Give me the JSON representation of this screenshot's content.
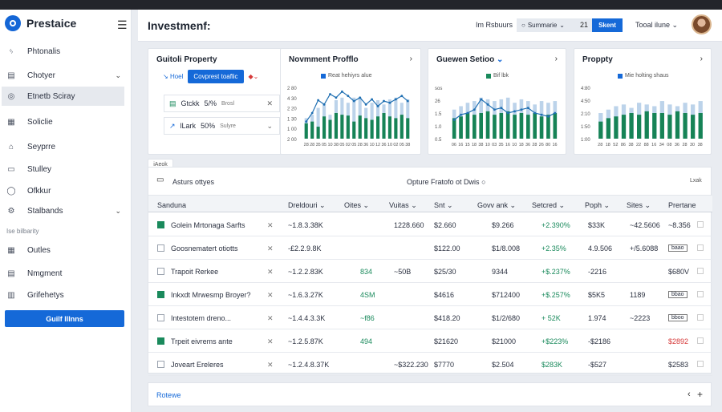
{
  "app": {
    "name": "Prestaice"
  },
  "sidebar": {
    "items": [
      {
        "label": "Phtonalis",
        "icon": "graph-icon"
      },
      {
        "label": "Chotyer",
        "icon": "table-icon"
      },
      {
        "label": "Etnetb Sciray",
        "icon": "layers-icon"
      },
      {
        "label": "Soliclie",
        "icon": "doc-icon"
      },
      {
        "label": "Seyprre",
        "icon": "pulse-icon"
      },
      {
        "label": "Stulley",
        "icon": "card-icon"
      },
      {
        "label": "Ofkkur",
        "icon": "wallet-icon"
      },
      {
        "label": "Stalbands",
        "icon": "gear-icon"
      },
      {
        "label": "Outles",
        "icon": "grid-icon"
      },
      {
        "label": "Nmgment",
        "icon": "list-icon"
      },
      {
        "label": "Grifehetys",
        "icon": "clipboard-icon"
      }
    ],
    "section": "Ise bilbarity",
    "button": "Guilf lllnns"
  },
  "topbar": {
    "title": "Investmenf:",
    "link": "Im Rsbuurs",
    "select": "Summarie",
    "number": "21",
    "button": "Skent",
    "dropdown": "Tooal ilune"
  },
  "cards": {
    "portfolio": {
      "title": "Guitoli Property",
      "chip": "Hoel",
      "button": "Covprest toaflic",
      "rows": [
        {
          "label": "Gtckk",
          "pct": "5/%",
          "val": "Brosl"
        },
        {
          "label": "lLark",
          "pct": "50%",
          "val": "Sulyre"
        }
      ]
    },
    "chart1": {
      "title": "Novmment Profflo",
      "legend": "Reat hehiyrs alue"
    },
    "chart2": {
      "title": "Guewen Setioo",
      "legend": "Bif lbk"
    },
    "chart3": {
      "title": "Proppty",
      "legend": "Mie holting shaus"
    }
  },
  "chart_data": [
    {
      "type": "bar",
      "title": "Novmment Profflo",
      "ylabels": [
        "2 80",
        "4 30",
        "2 20",
        "1 30",
        "1 00",
        "2 00"
      ],
      "categories": [
        "28",
        "28",
        "35",
        "05",
        "10",
        "38",
        "05",
        "02",
        "05",
        "28",
        "36",
        "10",
        "12",
        "36",
        "10",
        "02",
        "05",
        "38"
      ],
      "series": [
        {
          "name": "Reat hehiyrs alue",
          "values": [
            18,
            20,
            14,
            26,
            22,
            30,
            28,
            27,
            20,
            27,
            24,
            22,
            26,
            30,
            26,
            24,
            28,
            24
          ]
        },
        {
          "values": [
            24,
            28,
            36,
            40,
            28,
            45,
            48,
            42,
            48,
            48,
            36,
            42,
            45,
            40,
            46,
            48,
            42,
            46
          ]
        }
      ],
      "line": [
        20,
        30,
        45,
        40,
        52,
        48,
        55,
        50,
        44,
        48,
        40,
        46,
        38,
        44,
        42,
        46,
        50,
        44
      ]
    },
    {
      "type": "bar",
      "title": "Guewen Setioo",
      "ylabels": [
        "sos",
        "26",
        "1.5",
        "1.0",
        "0.5"
      ],
      "categories": [
        "06",
        "16",
        "15",
        "18",
        "38",
        "10",
        "03",
        "35",
        "16",
        "10",
        "18",
        "36",
        "28",
        "26",
        "80",
        "16"
      ],
      "series": [
        {
          "name": "Bif lbk",
          "values": [
            24,
            26,
            30,
            28,
            30,
            32,
            28,
            30,
            32,
            28,
            30,
            28,
            30,
            26,
            28,
            30
          ]
        },
        {
          "values": [
            34,
            38,
            42,
            44,
            48,
            46,
            44,
            46,
            48,
            42,
            46,
            44,
            40,
            44,
            42,
            44
          ]
        }
      ],
      "line": [
        22,
        28,
        30,
        34,
        46,
        40,
        34,
        36,
        30,
        32,
        34,
        36,
        30,
        28,
        26,
        30
      ]
    },
    {
      "type": "bar",
      "title": "Proppty",
      "ylabels": [
        "4:80",
        "4:50",
        "2:10",
        "1:50",
        "1:00"
      ],
      "categories": [
        "28",
        "18",
        "52",
        "86",
        "38",
        "22",
        "88",
        "16",
        "34",
        "08",
        "36",
        "28",
        "30",
        "38"
      ],
      "series": [
        {
          "name": "Mie holting shaus",
          "values": [
            20,
            24,
            26,
            28,
            30,
            28,
            32,
            30,
            30,
            28,
            32,
            30,
            28,
            30
          ]
        },
        {
          "values": [
            30,
            34,
            38,
            40,
            36,
            42,
            40,
            38,
            44,
            40,
            38,
            42,
            40,
            44
          ]
        }
      ]
    }
  ],
  "tag": "iAeok",
  "table": {
    "title": "Asturs ottyes",
    "subtitle": "Opture Fratofo ot Dwis",
    "corner": "Lxak",
    "headers": [
      "Sanduna",
      "Dreldouri",
      "Oites",
      "Vuitas",
      "Snt",
      "Govv ank",
      "Setcred",
      "Poph",
      "Sites",
      "Prertane"
    ],
    "rows": [
      {
        "name": "Golein Mrtonaga Sarfts",
        "v1": "~1.8.3.38K",
        "v2": "",
        "v3": "1228.660",
        "v4": "$2.660",
        "v5": "$9.266",
        "v6": "+2.390%",
        "v7": "$33K",
        "v8": "~42.5606",
        "v9": "~8.356",
        "check": true,
        "v9c": ""
      },
      {
        "name": "Goosnematert otiotts",
        "v1": "-£2.2.9.8K",
        "v2": "",
        "v3": "",
        "v4": "$122.00",
        "v5": "$1/8.008",
        "v6": "+2.35%",
        "v7": "4.9.506",
        "v8": "+/5.6088",
        "v9": "baao",
        "check": false,
        "v9c": "tag"
      },
      {
        "name": "Trapoit Rerkee",
        "v1": "~1.2.2.83K",
        "v2": "834",
        "v3": "~50B",
        "v4": "$25/30",
        "v5": "9344",
        "v6": "+$.237%",
        "v7": "-2216",
        "v8": "",
        "v9": "$680V",
        "check": false,
        "v9c": ""
      },
      {
        "name": "Inkxdt Mrwesmp Broyer?",
        "v1": "~1.6.3.27K",
        "v2": "4SM",
        "v3": "",
        "v4": "$4616",
        "v5": "$712400",
        "v6": "+$.257%",
        "v7": "$5K5",
        "v8": "1189",
        "v9": "bbao",
        "check": true,
        "v9c": "tag"
      },
      {
        "name": "Intestotem dreno...",
        "v1": "~1.4.4.3.3K",
        "v2": "~f86",
        "v3": "",
        "v4": "$418.20",
        "v5": "$1/2/680",
        "v6": "+ 52K",
        "v7": "1.974",
        "v8": "~2223",
        "v9": "bboo",
        "check": false,
        "v9c": "tag"
      },
      {
        "name": "Trpeit eivrems ante",
        "v1": "~1.2.5.87K",
        "v2": "494",
        "v3": "",
        "v4": "$21620",
        "v5": "$21000",
        "v6": "+$223%",
        "v7": "-$2186",
        "v8": "",
        "v9": "$2892",
        "check": true,
        "v9c": "red"
      },
      {
        "name": "Joveart Ereleres",
        "v1": "~1.2.4.8.37K",
        "v2": "",
        "v3": "~$322.230",
        "v4": "$7770",
        "v5": "$2.504",
        "v6": "$283K",
        "v7": "-$527",
        "v8": "",
        "v9": "$2583",
        "check": false,
        "v9c": ""
      }
    ]
  },
  "footer": {
    "label": "Rotewe"
  }
}
